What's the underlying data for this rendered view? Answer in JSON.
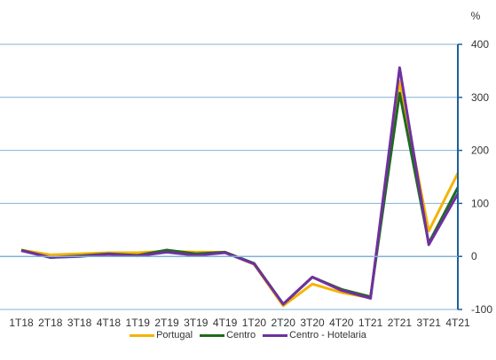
{
  "chart_data": {
    "type": "line",
    "title": "",
    "xlabel": "",
    "ylabel": "%",
    "ylim": [
      -100,
      400
    ],
    "yticks": [
      -100,
      0,
      100,
      200,
      300,
      400
    ],
    "grid": true,
    "legend_position": "bottom",
    "categories": [
      "1T18",
      "2T18",
      "3T18",
      "4T18",
      "1T19",
      "2T19",
      "3T19",
      "4T19",
      "1T20",
      "2T20",
      "3T20",
      "4T20",
      "1T21",
      "2T21",
      "3T21",
      "4T21"
    ],
    "series": [
      {
        "name": "Portugal",
        "color": "#F5B300",
        "values": [
          12,
          3,
          5,
          7,
          7,
          10,
          8,
          8,
          -15,
          -93,
          -52,
          -68,
          -78,
          330,
          48,
          157
        ]
      },
      {
        "name": "Centro",
        "color": "#1E6B1E",
        "values": [
          12,
          -2,
          1,
          5,
          2,
          12,
          5,
          8,
          -13,
          -90,
          -39,
          -62,
          -76,
          308,
          25,
          130
        ]
      },
      {
        "name": "Centro - Hotelaria",
        "color": "#7030A0",
        "values": [
          11,
          -2,
          0,
          4,
          1,
          8,
          2,
          7,
          -14,
          -90,
          -39,
          -64,
          -79,
          356,
          22,
          118
        ]
      }
    ]
  }
}
